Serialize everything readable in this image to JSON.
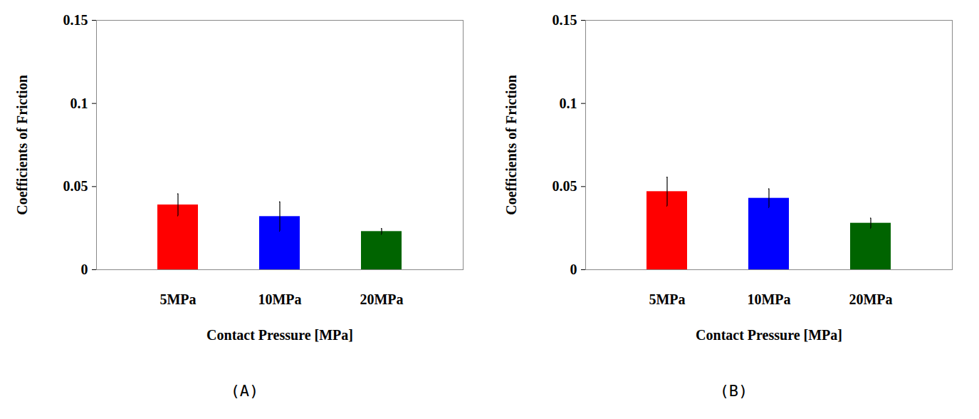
{
  "chart_data": [
    {
      "type": "bar",
      "title": "(A)",
      "x_label": "Contact Pressure [MPa]",
      "y_label": "Coefficients of Friction",
      "categories": [
        "5MPa",
        "10MPa",
        "20MPa"
      ],
      "values": [
        0.039,
        0.032,
        0.023
      ],
      "errors": [
        0.0066,
        0.0088,
        0.0017
      ],
      "colors": [
        "#ff0000",
        "#0000ff",
        "#006400"
      ],
      "ylim": [
        0,
        0.15
      ],
      "yticks": [
        0,
        0.05,
        0.1,
        0.15
      ],
      "grid": false
    },
    {
      "type": "bar",
      "title": "(B)",
      "x_label": "Contact Pressure [MPa]",
      "y_label": "Coefficients of Friction",
      "categories": [
        "5MPa",
        "10MPa",
        "20MPa"
      ],
      "values": [
        0.047,
        0.043,
        0.028
      ],
      "errors": [
        0.0087,
        0.0056,
        0.003
      ],
      "colors": [
        "#ff0000",
        "#0000ff",
        "#006400"
      ],
      "ylim": [
        0,
        0.15
      ],
      "yticks": [
        0,
        0.05,
        0.1,
        0.15
      ],
      "grid": false
    }
  ]
}
